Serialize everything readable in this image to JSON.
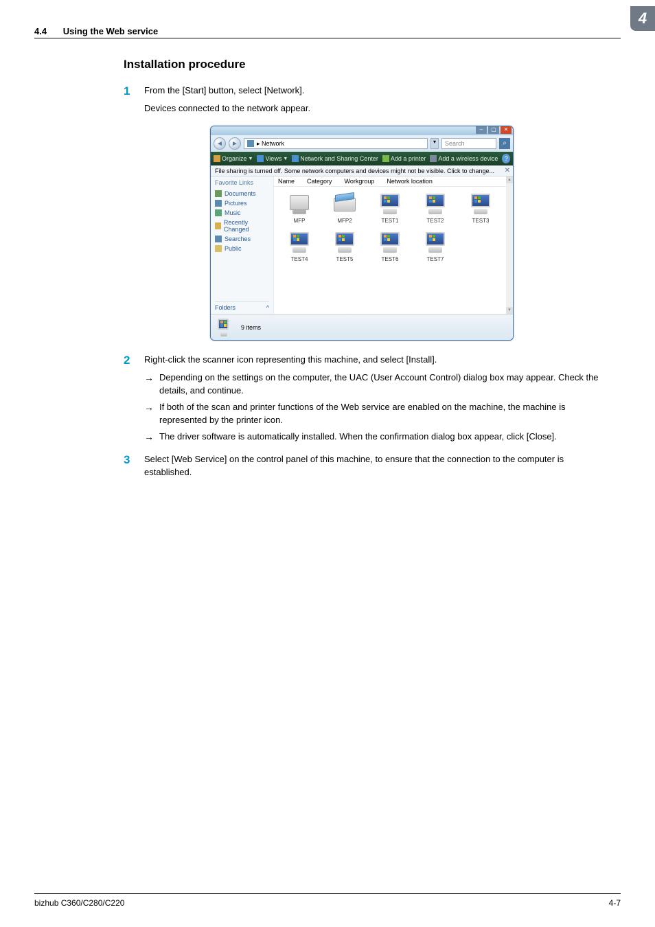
{
  "header": {
    "section_num": "4.4",
    "section_title": "Using the Web service",
    "chapter_num": "4"
  },
  "heading": "Installation procedure",
  "steps": [
    {
      "num": "1",
      "lines": [
        "From the [Start] button, select [Network].",
        "Devices connected to the network appear."
      ]
    },
    {
      "num": "2",
      "lines": [
        "Right-click the scanner icon representing this machine, and select [Install]."
      ],
      "bullets": [
        "Depending on the settings on the computer, the UAC (User Account Control) dialog box may appear. Check the details, and continue.",
        "If both of the scan and printer functions of the Web service are enabled on the machine, the machine is represented by the printer icon.",
        "The driver software is automatically installed. When the confirmation dialog box appear, click [Close]."
      ]
    },
    {
      "num": "3",
      "lines": [
        "Select [Web Service] on the control panel of this machine, to ensure that the connection to the computer is established."
      ]
    }
  ],
  "window": {
    "breadcrumb": "▸ Network",
    "search_placeholder": "Search",
    "toolbar": {
      "items": [
        "Organize",
        "Views",
        "Network and Sharing Center",
        "Add a printer",
        "Add a wireless device"
      ],
      "icon_colors": [
        "#d8a040",
        "#4a90d0",
        "#4a90d0",
        "#7ab848",
        "#7a8a98"
      ]
    },
    "info_bar": "File sharing is turned off. Some network computers and devices might not be visible. Click to change...",
    "sidebar": {
      "heading": "Favorite Links",
      "items": [
        "Documents",
        "Pictures",
        "Music",
        "Recently Changed",
        "Searches",
        "Public"
      ],
      "icon_colors": [
        "#6a9a5a",
        "#5a8ab0",
        "#5aa575",
        "#d8b050",
        "#5a8ab0",
        "#d8c060"
      ],
      "folders_label": "Folders"
    },
    "columns": [
      "Name",
      "Category",
      "Workgroup",
      "Network location"
    ],
    "devices": [
      {
        "label": "MFP",
        "type": "printer"
      },
      {
        "label": "MFP2",
        "type": "scanner"
      },
      {
        "label": "TEST1",
        "type": "pc"
      },
      {
        "label": "TEST2",
        "type": "pc"
      },
      {
        "label": "TEST3",
        "type": "pc"
      },
      {
        "label": "TEST4",
        "type": "pc"
      },
      {
        "label": "TEST5",
        "type": "pc"
      },
      {
        "label": "TEST6",
        "type": "pc"
      },
      {
        "label": "TEST7",
        "type": "pc"
      }
    ],
    "status": "9 items"
  },
  "footer": {
    "left": "bizhub C360/C280/C220",
    "right": "4-7"
  },
  "colors": {
    "accent_cyan": "#0099cc",
    "header_box": "#6f7a86"
  }
}
